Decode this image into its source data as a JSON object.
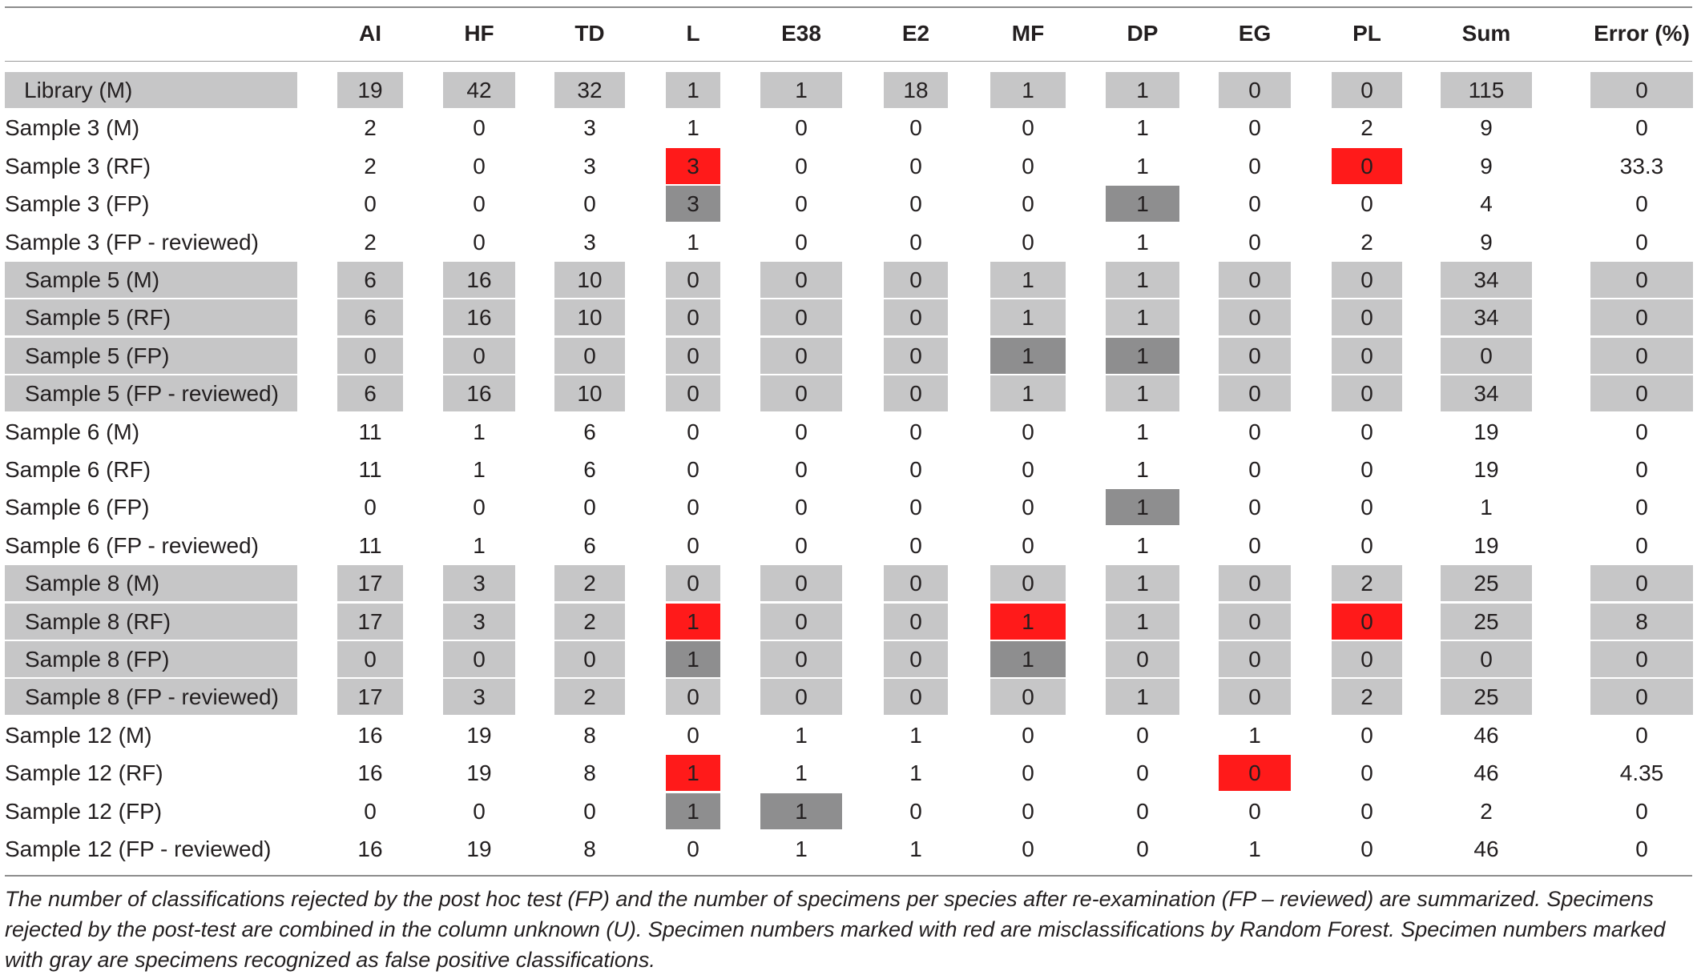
{
  "columns": [
    "AI",
    "HF",
    "TD",
    "L",
    "E38",
    "E2",
    "MF",
    "DP",
    "EG",
    "PL",
    "Sum",
    "Error (%)"
  ],
  "rows": [
    {
      "label": "Library (M)",
      "group": "shade",
      "values": [
        "19",
        "42",
        "32",
        "1",
        "1",
        "18",
        "1",
        "1",
        "0",
        "0",
        "115",
        "0"
      ],
      "marks": {}
    },
    {
      "label": "Sample 3 (M)",
      "group": "none",
      "values": [
        "2",
        "0",
        "3",
        "1",
        "0",
        "0",
        "0",
        "1",
        "0",
        "2",
        "9",
        "0"
      ],
      "marks": {}
    },
    {
      "label": "Sample 3 (RF)",
      "group": "none",
      "values": [
        "2",
        "0",
        "3",
        "3",
        "0",
        "0",
        "0",
        "1",
        "0",
        "0",
        "9",
        "33.3"
      ],
      "marks": {
        "3": "red",
        "9": "red"
      }
    },
    {
      "label": "Sample 3 (FP)",
      "group": "none",
      "values": [
        "0",
        "0",
        "0",
        "3",
        "0",
        "0",
        "0",
        "1",
        "0",
        "0",
        "4",
        "0"
      ],
      "marks": {
        "3": "dark",
        "7": "dark"
      }
    },
    {
      "label": "Sample 3 (FP - reviewed)",
      "group": "none",
      "values": [
        "2",
        "0",
        "3",
        "1",
        "0",
        "0",
        "0",
        "1",
        "0",
        "2",
        "9",
        "0"
      ],
      "marks": {}
    },
    {
      "label": "Sample 5 (M)",
      "group": "shade",
      "values": [
        "6",
        "16",
        "10",
        "0",
        "0",
        "0",
        "1",
        "1",
        "0",
        "0",
        "34",
        "0"
      ],
      "marks": {}
    },
    {
      "label": "Sample 5 (RF)",
      "group": "shade",
      "values": [
        "6",
        "16",
        "10",
        "0",
        "0",
        "0",
        "1",
        "1",
        "0",
        "0",
        "34",
        "0"
      ],
      "marks": {}
    },
    {
      "label": "Sample 5 (FP)",
      "group": "shade",
      "values": [
        "0",
        "0",
        "0",
        "0",
        "0",
        "0",
        "1",
        "1",
        "0",
        "0",
        "0",
        "0"
      ],
      "marks": {
        "6": "dark",
        "7": "dark"
      }
    },
    {
      "label": "Sample 5 (FP - reviewed)",
      "group": "shade",
      "values": [
        "6",
        "16",
        "10",
        "0",
        "0",
        "0",
        "1",
        "1",
        "0",
        "0",
        "34",
        "0"
      ],
      "marks": {}
    },
    {
      "label": "Sample 6 (M)",
      "group": "none",
      "values": [
        "11",
        "1",
        "6",
        "0",
        "0",
        "0",
        "0",
        "1",
        "0",
        "0",
        "19",
        "0"
      ],
      "marks": {}
    },
    {
      "label": "Sample 6 (RF)",
      "group": "none",
      "values": [
        "11",
        "1",
        "6",
        "0",
        "0",
        "0",
        "0",
        "1",
        "0",
        "0",
        "19",
        "0"
      ],
      "marks": {}
    },
    {
      "label": "Sample 6 (FP)",
      "group": "none",
      "values": [
        "0",
        "0",
        "0",
        "0",
        "0",
        "0",
        "0",
        "1",
        "0",
        "0",
        "1",
        "0"
      ],
      "marks": {
        "7": "dark"
      }
    },
    {
      "label": "Sample 6 (FP - reviewed)",
      "group": "none",
      "values": [
        "11",
        "1",
        "6",
        "0",
        "0",
        "0",
        "0",
        "1",
        "0",
        "0",
        "19",
        "0"
      ],
      "marks": {}
    },
    {
      "label": "Sample 8 (M)",
      "group": "shade",
      "values": [
        "17",
        "3",
        "2",
        "0",
        "0",
        "0",
        "0",
        "1",
        "0",
        "2",
        "25",
        "0"
      ],
      "marks": {}
    },
    {
      "label": "Sample 8 (RF)",
      "group": "shade",
      "values": [
        "17",
        "3",
        "2",
        "1",
        "0",
        "0",
        "1",
        "1",
        "0",
        "0",
        "25",
        "8"
      ],
      "marks": {
        "3": "red",
        "6": "red",
        "9": "red"
      }
    },
    {
      "label": "Sample 8 (FP)",
      "group": "shade",
      "values": [
        "0",
        "0",
        "0",
        "1",
        "0",
        "0",
        "1",
        "0",
        "0",
        "0",
        "0",
        "0"
      ],
      "marks": {
        "3": "dark",
        "6": "dark"
      }
    },
    {
      "label": "Sample 8 (FP - reviewed)",
      "group": "shade",
      "values": [
        "17",
        "3",
        "2",
        "0",
        "0",
        "0",
        "0",
        "1",
        "0",
        "2",
        "25",
        "0"
      ],
      "marks": {}
    },
    {
      "label": "Sample 12 (M)",
      "group": "none",
      "values": [
        "16",
        "19",
        "8",
        "0",
        "1",
        "1",
        "0",
        "0",
        "1",
        "0",
        "46",
        "0"
      ],
      "marks": {}
    },
    {
      "label": "Sample 12 (RF)",
      "group": "none",
      "values": [
        "16",
        "19",
        "8",
        "1",
        "1",
        "1",
        "0",
        "0",
        "0",
        "0",
        "46",
        "4.35"
      ],
      "marks": {
        "3": "red",
        "8": "red"
      }
    },
    {
      "label": "Sample 12 (FP)",
      "group": "none",
      "values": [
        "0",
        "0",
        "0",
        "1",
        "1",
        "0",
        "0",
        "0",
        "0",
        "0",
        "2",
        "0"
      ],
      "marks": {
        "3": "dark",
        "4": "dark"
      }
    },
    {
      "label": "Sample 12 (FP - reviewed)",
      "group": "none",
      "values": [
        "16",
        "19",
        "8",
        "0",
        "1",
        "1",
        "0",
        "0",
        "1",
        "0",
        "46",
        "0"
      ],
      "marks": {}
    }
  ],
  "footnote": "The number of classifications rejected by the post hoc test (FP) and the number of specimens per species after re-examination (FP – reviewed) are summarized. Specimens rejected by the post-test are combined in the column unknown (U). Specimen numbers marked with red are misclassifications by Random Forest. Specimen numbers marked with gray are specimens recognized as false positive classifications.",
  "colors": {
    "shade": "#c6c6c7",
    "dark": "#8e8e8f",
    "red": "#ff1a1a",
    "text": "#231f20"
  }
}
